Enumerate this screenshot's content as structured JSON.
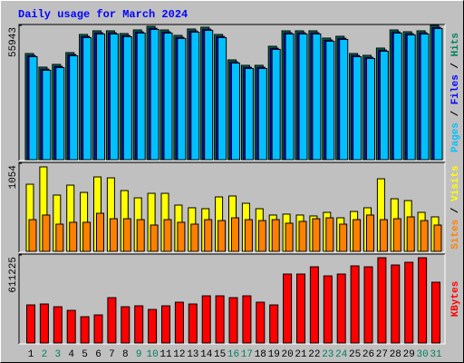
{
  "chart_data": [
    {
      "type": "bar",
      "title": "Daily usage for March 2024",
      "ylim": [
        0,
        55943
      ],
      "yticks": [
        55943
      ],
      "legend_separator": " / ",
      "series": [
        {
          "name": "Hits",
          "color": "#00805c",
          "values": [
            44225,
            38555,
            39690,
            44604,
            52164,
            53676,
            53676,
            52542,
            54054,
            55566,
            54054,
            51786,
            54432,
            55188,
            52164,
            41580,
            39312,
            39312,
            47250,
            53676,
            53676,
            53676,
            50652,
            51408,
            44226,
            43470,
            46494,
            54054,
            53298,
            53676,
            55943
          ]
        },
        {
          "name": "Files",
          "color": "#0000ff",
          "values": [
            43425,
            37755,
            38890,
            43804,
            51364,
            52876,
            52876,
            51742,
            53254,
            54766,
            53254,
            50986,
            53632,
            54388,
            51364,
            40780,
            38512,
            38512,
            46450,
            52876,
            52876,
            52876,
            49852,
            50608,
            43426,
            42670,
            45694,
            53254,
            52498,
            52876,
            55143
          ]
        },
        {
          "name": "Pages",
          "color": "#00c0ff",
          "values": [
            42925,
            37255,
            38390,
            43304,
            50864,
            52376,
            52376,
            51242,
            52754,
            54266,
            52754,
            50486,
            53132,
            53888,
            50864,
            40280,
            38012,
            38012,
            45950,
            52376,
            52376,
            52376,
            49352,
            50108,
            42926,
            42170,
            45194,
            52754,
            51998,
            52376,
            54643
          ]
        }
      ]
    },
    {
      "type": "bar",
      "ylim": [
        0,
        1054
      ],
      "yticks": [
        1054
      ],
      "legend_separator": " / ",
      "series": [
        {
          "name": "Visits",
          "color": "#ffff00",
          "values": [
            804,
            1011,
            674,
            793,
            706,
            891,
            880,
            728,
            641,
            695,
            695,
            554,
            522,
            511,
            652,
            663,
            576,
            511,
            435,
            446,
            435,
            424,
            467,
            402,
            478,
            522,
            869,
            630,
            608,
            467,
            413
          ]
        },
        {
          "name": "Sites",
          "color": "#ff8000",
          "values": [
            380,
            435,
            326,
            348,
            348,
            456,
            391,
            391,
            380,
            315,
            380,
            348,
            326,
            380,
            369,
            402,
            380,
            369,
            380,
            337,
            359,
            391,
            402,
            326,
            380,
            435,
            380,
            391,
            413,
            369,
            315
          ]
        }
      ]
    },
    {
      "type": "bar",
      "ylim": [
        0,
        611225
      ],
      "yticks": [
        611225
      ],
      "series": [
        {
          "name": "KBytes",
          "color": "#ff0000",
          "values": [
            264642,
            270943,
            252040,
            226836,
            182729,
            195331,
            315050,
            252040,
            258341,
            233137,
            258341,
            283545,
            270943,
            327652,
            327652,
            315050,
            327652,
            283545,
            264642,
            478876,
            478876,
            529284,
            466274,
            478876,
            535585,
            529284,
            592294,
            541886,
            560789,
            592294,
            422167
          ]
        }
      ],
      "categories": [
        "1",
        "2",
        "3",
        "4",
        "5",
        "6",
        "7",
        "8",
        "9",
        "10",
        "11",
        "12",
        "13",
        "14",
        "15",
        "16",
        "17",
        "18",
        "19",
        "20",
        "21",
        "22",
        "23",
        "24",
        "25",
        "26",
        "27",
        "28",
        "29",
        "30",
        "31"
      ],
      "category_colors": [
        "#000000",
        "#00805c",
        "#00805c",
        "#000000",
        "#000000",
        "#000000",
        "#000000",
        "#000000",
        "#00805c",
        "#00805c",
        "#000000",
        "#000000",
        "#000000",
        "#000000",
        "#000000",
        "#00805c",
        "#00805c",
        "#000000",
        "#000000",
        "#000000",
        "#000000",
        "#000000",
        "#00805c",
        "#00805c",
        "#000000",
        "#000000",
        "#000000",
        "#000000",
        "#000000",
        "#00805c",
        "#00805c"
      ]
    }
  ]
}
